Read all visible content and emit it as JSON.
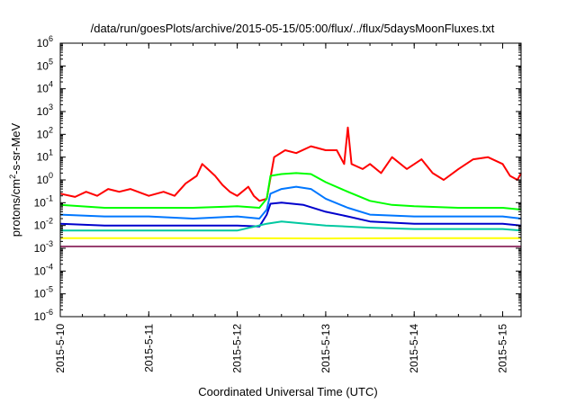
{
  "chart_data": {
    "type": "line",
    "title": "/data/run/goesPlots/archive/2015-05-15/05:00/flux/../flux/5daysMoonFluxes.txt",
    "xlabel": "Coordinated Universal Time (UTC)",
    "ylabel": {
      "prefix": "protons/cm",
      "sup": "2",
      "suffix": "-s-sr-MeV"
    },
    "yscale": "log",
    "ylim": [
      1e-06,
      1000000.0
    ],
    "xlim": [
      "2015-05-10T00:00",
      "2015-05-15T05:00"
    ],
    "y_ticks": [
      {
        "value": 1e-06,
        "base": "10",
        "exp": "-6"
      },
      {
        "value": 1e-05,
        "base": "10",
        "exp": "-5"
      },
      {
        "value": 0.0001,
        "base": "10",
        "exp": "-4"
      },
      {
        "value": 0.001,
        "base": "10",
        "exp": "-3"
      },
      {
        "value": 0.01,
        "base": "10",
        "exp": "-2"
      },
      {
        "value": 0.1,
        "base": "10",
        "exp": "-1"
      },
      {
        "value": 1,
        "base": "10",
        "exp": "0"
      },
      {
        "value": 10.0,
        "base": "10",
        "exp": "1"
      },
      {
        "value": 100.0,
        "base": "10",
        "exp": "2"
      },
      {
        "value": 1000.0,
        "base": "10",
        "exp": "3"
      },
      {
        "value": 10000.0,
        "base": "10",
        "exp": "4"
      },
      {
        "value": 100000.0,
        "base": "10",
        "exp": "5"
      },
      {
        "value": 1000000.0,
        "base": "10",
        "exp": "6"
      }
    ],
    "x_ticks": [
      {
        "x": "2015-05-10T00:00",
        "label": "2015-5-10"
      },
      {
        "x": "2015-05-11T00:00",
        "label": "2015-5-11"
      },
      {
        "x": "2015-05-12T00:00",
        "label": "2015-5-12"
      },
      {
        "x": "2015-05-13T00:00",
        "label": "2015-5-13"
      },
      {
        "x": "2015-05-14T00:00",
        "label": "2015-5-14"
      },
      {
        "x": "2015-05-15T00:00",
        "label": "2015-5-15"
      }
    ],
    "grid": false,
    "legend": "none",
    "series": [
      {
        "color": "#ff0000",
        "points": [
          [
            "2015-05-10T00:00",
            0.25
          ],
          [
            "2015-05-10T04:00",
            0.18
          ],
          [
            "2015-05-10T07:00",
            0.3
          ],
          [
            "2015-05-10T10:00",
            0.2
          ],
          [
            "2015-05-10T13:00",
            0.4
          ],
          [
            "2015-05-10T16:00",
            0.3
          ],
          [
            "2015-05-10T19:00",
            0.4
          ],
          [
            "2015-05-11T00:00",
            0.2
          ],
          [
            "2015-05-11T04:00",
            0.3
          ],
          [
            "2015-05-11T07:00",
            0.2
          ],
          [
            "2015-05-11T10:00",
            0.7
          ],
          [
            "2015-05-11T13:00",
            1.5
          ],
          [
            "2015-05-11T14:30",
            5
          ],
          [
            "2015-05-11T16:00",
            3
          ],
          [
            "2015-05-11T18:00",
            1.5
          ],
          [
            "2015-05-11T20:00",
            0.6
          ],
          [
            "2015-05-11T22:00",
            0.3
          ],
          [
            "2015-05-12T00:00",
            0.2
          ],
          [
            "2015-05-12T03:00",
            0.5
          ],
          [
            "2015-05-12T04:30",
            0.2
          ],
          [
            "2015-05-12T06:00",
            0.12
          ],
          [
            "2015-05-12T08:00",
            0.15
          ],
          [
            "2015-05-12T10:00",
            10
          ],
          [
            "2015-05-12T13:00",
            20
          ],
          [
            "2015-05-12T16:00",
            15
          ],
          [
            "2015-05-12T20:00",
            30
          ],
          [
            "2015-05-13T00:00",
            20
          ],
          [
            "2015-05-13T03:00",
            20
          ],
          [
            "2015-05-13T05:00",
            5
          ],
          [
            "2015-05-13T06:00",
            200
          ],
          [
            "2015-05-13T07:00",
            5
          ],
          [
            "2015-05-13T10:00",
            3
          ],
          [
            "2015-05-13T12:00",
            5
          ],
          [
            "2015-05-13T15:00",
            2
          ],
          [
            "2015-05-13T18:00",
            10
          ],
          [
            "2015-05-13T22:00",
            3
          ],
          [
            "2015-05-14T02:00",
            8
          ],
          [
            "2015-05-14T05:00",
            2
          ],
          [
            "2015-05-14T08:00",
            1
          ],
          [
            "2015-05-14T12:00",
            3
          ],
          [
            "2015-05-14T16:00",
            8
          ],
          [
            "2015-05-14T20:00",
            10
          ],
          [
            "2015-05-15T00:00",
            5
          ],
          [
            "2015-05-15T02:00",
            1.5
          ],
          [
            "2015-05-15T04:00",
            1
          ],
          [
            "2015-05-15T05:00",
            2
          ]
        ]
      },
      {
        "color": "#00ff00",
        "points": [
          [
            "2015-05-10T00:00",
            0.08
          ],
          [
            "2015-05-10T12:00",
            0.06
          ],
          [
            "2015-05-11T00:00",
            0.06
          ],
          [
            "2015-05-11T12:00",
            0.06
          ],
          [
            "2015-05-12T00:00",
            0.07
          ],
          [
            "2015-05-12T06:00",
            0.06
          ],
          [
            "2015-05-12T08:00",
            0.15
          ],
          [
            "2015-05-12T09:00",
            1.5
          ],
          [
            "2015-05-12T12:00",
            1.8
          ],
          [
            "2015-05-12T16:00",
            2
          ],
          [
            "2015-05-12T20:00",
            1.8
          ],
          [
            "2015-05-13T00:00",
            0.8
          ],
          [
            "2015-05-13T06:00",
            0.3
          ],
          [
            "2015-05-13T12:00",
            0.12
          ],
          [
            "2015-05-13T18:00",
            0.08
          ],
          [
            "2015-05-14T00:00",
            0.07
          ],
          [
            "2015-05-14T12:00",
            0.06
          ],
          [
            "2015-05-15T00:00",
            0.06
          ],
          [
            "2015-05-15T05:00",
            0.05
          ]
        ]
      },
      {
        "color": "#0077ff",
        "points": [
          [
            "2015-05-10T00:00",
            0.03
          ],
          [
            "2015-05-10T12:00",
            0.025
          ],
          [
            "2015-05-11T00:00",
            0.025
          ],
          [
            "2015-05-11T12:00",
            0.02
          ],
          [
            "2015-05-12T00:00",
            0.025
          ],
          [
            "2015-05-12T06:00",
            0.02
          ],
          [
            "2015-05-12T08:00",
            0.05
          ],
          [
            "2015-05-12T09:00",
            0.25
          ],
          [
            "2015-05-12T12:00",
            0.4
          ],
          [
            "2015-05-12T16:00",
            0.5
          ],
          [
            "2015-05-12T20:00",
            0.4
          ],
          [
            "2015-05-13T00:00",
            0.15
          ],
          [
            "2015-05-13T06:00",
            0.06
          ],
          [
            "2015-05-13T12:00",
            0.03
          ],
          [
            "2015-05-14T00:00",
            0.025
          ],
          [
            "2015-05-15T00:00",
            0.025
          ],
          [
            "2015-05-15T05:00",
            0.02
          ]
        ]
      },
      {
        "color": "#0000cc",
        "points": [
          [
            "2015-05-10T00:00",
            0.012
          ],
          [
            "2015-05-10T12:00",
            0.01
          ],
          [
            "2015-05-11T00:00",
            0.01
          ],
          [
            "2015-05-11T12:00",
            0.01
          ],
          [
            "2015-05-12T00:00",
            0.01
          ],
          [
            "2015-05-12T06:00",
            0.009
          ],
          [
            "2015-05-12T08:00",
            0.03
          ],
          [
            "2015-05-12T09:00",
            0.09
          ],
          [
            "2015-05-12T12:00",
            0.1
          ],
          [
            "2015-05-12T18:00",
            0.08
          ],
          [
            "2015-05-13T00:00",
            0.04
          ],
          [
            "2015-05-13T06:00",
            0.025
          ],
          [
            "2015-05-13T12:00",
            0.015
          ],
          [
            "2015-05-14T00:00",
            0.012
          ],
          [
            "2015-05-15T00:00",
            0.012
          ],
          [
            "2015-05-15T05:00",
            0.01
          ]
        ]
      },
      {
        "color": "#00c8a0",
        "points": [
          [
            "2015-05-10T00:00",
            0.006
          ],
          [
            "2015-05-11T00:00",
            0.006
          ],
          [
            "2015-05-12T00:00",
            0.006
          ],
          [
            "2015-05-12T08:00",
            0.012
          ],
          [
            "2015-05-12T12:00",
            0.015
          ],
          [
            "2015-05-13T00:00",
            0.01
          ],
          [
            "2015-05-13T12:00",
            0.008
          ],
          [
            "2015-05-14T00:00",
            0.007
          ],
          [
            "2015-05-15T00:00",
            0.007
          ],
          [
            "2015-05-15T05:00",
            0.006
          ]
        ]
      },
      {
        "color": "#ffff00",
        "points": [
          [
            "2015-05-10T00:00",
            0.0028
          ],
          [
            "2015-05-11T00:00",
            0.0028
          ],
          [
            "2015-05-12T00:00",
            0.0028
          ],
          [
            "2015-05-13T00:00",
            0.0027
          ],
          [
            "2015-05-14T00:00",
            0.0028
          ],
          [
            "2015-05-15T00:00",
            0.0028
          ],
          [
            "2015-05-15T05:00",
            0.0028
          ]
        ]
      },
      {
        "color": "#994070",
        "points": [
          [
            "2015-05-10T00:00",
            0.0012
          ],
          [
            "2015-05-11T00:00",
            0.0012
          ],
          [
            "2015-05-12T00:00",
            0.0012
          ],
          [
            "2015-05-13T00:00",
            0.0012
          ],
          [
            "2015-05-14T00:00",
            0.0012
          ],
          [
            "2015-05-15T00:00",
            0.0012
          ],
          [
            "2015-05-15T05:00",
            0.0012
          ]
        ]
      }
    ]
  }
}
